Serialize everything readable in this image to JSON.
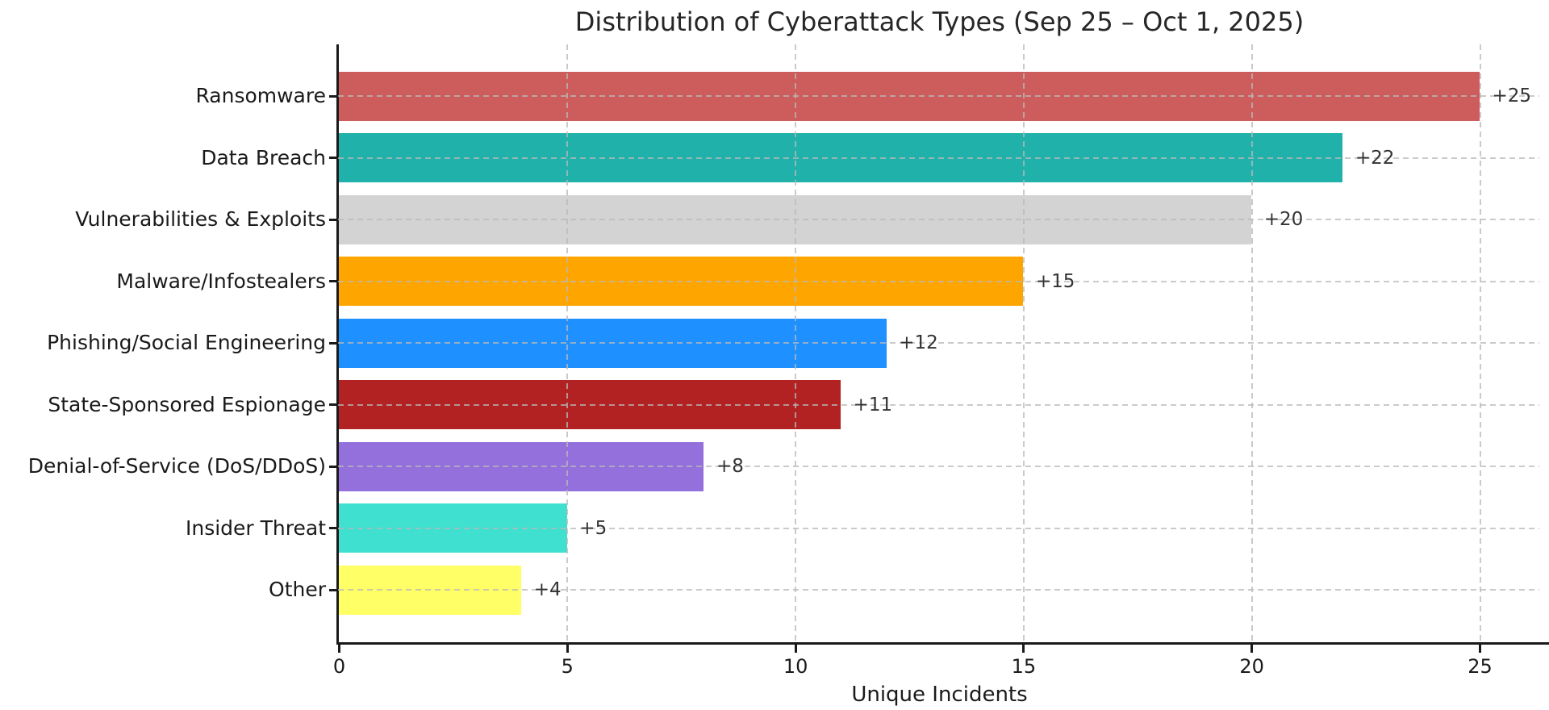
{
  "chart_data": {
    "type": "bar",
    "orientation": "horizontal",
    "title": "Distribution of Cyberattack Types (Sep 25 – Oct 1, 2025)",
    "xlabel": "Unique Incidents",
    "categories": [
      "Ransomware",
      "Data Breach",
      "Vulnerabilities & Exploits",
      "Malware/Infostealers",
      "Phishing/Social Engineering",
      "State-Sponsored Espionage",
      "Denial-of-Service (DoS/DDoS)",
      "Insider Threat",
      "Other"
    ],
    "values": [
      25,
      22,
      20,
      15,
      12,
      11,
      8,
      5,
      4
    ],
    "value_labels": [
      "+25",
      "+22",
      "+20",
      "+15",
      "+12",
      "+11",
      "+8",
      "+5",
      "+4"
    ],
    "bar_colors": [
      "#CD5C5C",
      "#20B2AA",
      "#D3D3D3",
      "#FFA500",
      "#1E90FF",
      "#B22222",
      "#9370DB",
      "#40E0D0",
      "#FFFF66"
    ],
    "x_ticks": [
      0,
      5,
      10,
      15,
      20,
      25
    ],
    "x_tick_labels": [
      "0",
      "5",
      "10",
      "15",
      "20",
      "25"
    ],
    "xlim": [
      0,
      26.35
    ],
    "grid": {
      "style": "dashed",
      "color": "#b9b9b9",
      "x": true,
      "y": true
    },
    "background": "#ffffff",
    "axis_color": "#1a1a1a"
  }
}
